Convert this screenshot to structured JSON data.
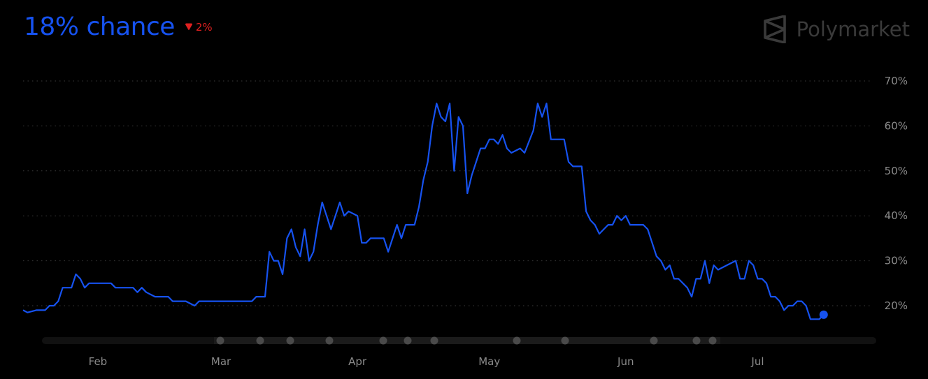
{
  "header": {
    "chance_text": "18% chance",
    "change_text": "2%",
    "brand_name": "Polymarket"
  },
  "colors": {
    "series": "#1652f0",
    "change_down": "#e02020",
    "grid": "#3a3a3a",
    "brand": "#3a3a3a"
  },
  "icons": {
    "change": "caret-down-icon",
    "brand": "polymarket-logo-icon"
  },
  "chart_data": {
    "type": "line",
    "title": "",
    "xlabel": "",
    "ylabel": "",
    "ylim": [
      12,
      72
    ],
    "yticks": [
      20,
      30,
      40,
      50,
      60,
      70
    ],
    "ytick_labels": [
      "20%",
      "30%",
      "40%",
      "50%",
      "60%",
      "70%"
    ],
    "month_labels": [
      "Feb",
      "Mar",
      "Apr",
      "May",
      "Jun",
      "Jul"
    ],
    "month_day_index": [
      17,
      45,
      76,
      106,
      137,
      167
    ],
    "grid": "horizontal-dotted",
    "legend": "none",
    "x_day_range": [
      0,
      193
    ],
    "series": [
      {
        "values": [
          [
            0,
            19
          ],
          [
            1,
            18.5
          ],
          [
            3,
            19
          ],
          [
            5,
            19
          ],
          [
            6,
            20
          ],
          [
            7,
            20
          ],
          [
            8,
            21
          ],
          [
            9,
            24
          ],
          [
            11,
            24
          ],
          [
            12,
            27
          ],
          [
            13,
            26
          ],
          [
            14,
            24
          ],
          [
            15,
            25
          ],
          [
            20,
            25
          ],
          [
            21,
            24
          ],
          [
            25,
            24
          ],
          [
            26,
            23
          ],
          [
            27,
            24
          ],
          [
            28,
            23
          ],
          [
            30,
            22
          ],
          [
            33,
            22
          ],
          [
            34,
            21
          ],
          [
            37,
            21
          ],
          [
            39,
            20
          ],
          [
            40,
            21
          ],
          [
            42,
            21
          ],
          [
            49,
            21
          ],
          [
            52,
            21
          ],
          [
            53,
            22
          ],
          [
            55,
            22
          ],
          [
            56,
            32
          ],
          [
            57,
            30
          ],
          [
            58,
            30
          ],
          [
            59,
            27
          ],
          [
            60,
            35
          ],
          [
            61,
            37
          ],
          [
            62,
            33
          ],
          [
            63,
            31
          ],
          [
            64,
            37
          ],
          [
            65,
            30
          ],
          [
            66,
            32
          ],
          [
            67,
            38
          ],
          [
            68,
            43
          ],
          [
            69,
            40
          ],
          [
            70,
            37
          ],
          [
            71,
            40
          ],
          [
            72,
            43
          ],
          [
            73,
            40
          ],
          [
            74,
            41
          ],
          [
            76,
            40
          ],
          [
            77,
            34
          ],
          [
            78,
            34
          ],
          [
            79,
            35
          ],
          [
            82,
            35
          ],
          [
            83,
            32
          ],
          [
            84,
            35
          ],
          [
            85,
            38
          ],
          [
            86,
            35
          ],
          [
            87,
            38
          ],
          [
            89,
            38
          ],
          [
            90,
            42
          ],
          [
            91,
            48
          ],
          [
            92,
            52
          ],
          [
            93,
            60
          ],
          [
            94,
            65
          ],
          [
            95,
            62
          ],
          [
            96,
            61
          ],
          [
            97,
            65
          ],
          [
            98,
            50
          ],
          [
            99,
            62
          ],
          [
            100,
            60
          ],
          [
            101,
            45
          ],
          [
            102,
            49
          ],
          [
            103,
            52
          ],
          [
            104,
            55
          ],
          [
            105,
            55
          ],
          [
            106,
            57
          ],
          [
            107,
            57
          ],
          [
            108,
            56
          ],
          [
            109,
            58
          ],
          [
            110,
            55
          ],
          [
            111,
            54
          ],
          [
            113,
            55
          ],
          [
            114,
            54
          ],
          [
            116,
            59
          ],
          [
            117,
            65
          ],
          [
            118,
            62
          ],
          [
            119,
            65
          ],
          [
            120,
            57
          ],
          [
            123,
            57
          ],
          [
            124,
            52
          ],
          [
            125,
            51
          ],
          [
            127,
            51
          ],
          [
            128,
            41
          ],
          [
            129,
            39
          ],
          [
            130,
            38
          ],
          [
            131,
            36
          ],
          [
            132,
            37
          ],
          [
            133,
            38
          ],
          [
            134,
            38
          ],
          [
            135,
            40
          ],
          [
            136,
            39
          ],
          [
            137,
            40
          ],
          [
            138,
            38
          ],
          [
            141,
            38
          ],
          [
            142,
            37
          ],
          [
            143,
            34
          ],
          [
            144,
            31
          ],
          [
            145,
            30
          ],
          [
            146,
            28
          ],
          [
            147,
            29
          ],
          [
            148,
            26
          ],
          [
            149,
            26
          ],
          [
            151,
            24
          ],
          [
            152,
            22
          ],
          [
            153,
            26
          ],
          [
            154,
            26
          ],
          [
            155,
            30
          ],
          [
            156,
            25
          ],
          [
            157,
            29
          ],
          [
            158,
            28
          ],
          [
            160,
            29
          ],
          [
            162,
            30
          ],
          [
            163,
            26
          ],
          [
            164,
            26
          ],
          [
            165,
            30
          ],
          [
            166,
            29
          ],
          [
            167,
            26
          ],
          [
            168,
            26
          ],
          [
            169,
            25
          ],
          [
            170,
            22
          ],
          [
            171,
            22
          ],
          [
            172,
            21
          ],
          [
            173,
            19
          ],
          [
            174,
            20
          ],
          [
            175,
            20
          ],
          [
            176,
            21
          ],
          [
            177,
            21
          ],
          [
            178,
            20
          ],
          [
            179,
            17
          ],
          [
            181,
            17
          ],
          [
            182,
            18
          ]
        ]
      }
    ]
  }
}
